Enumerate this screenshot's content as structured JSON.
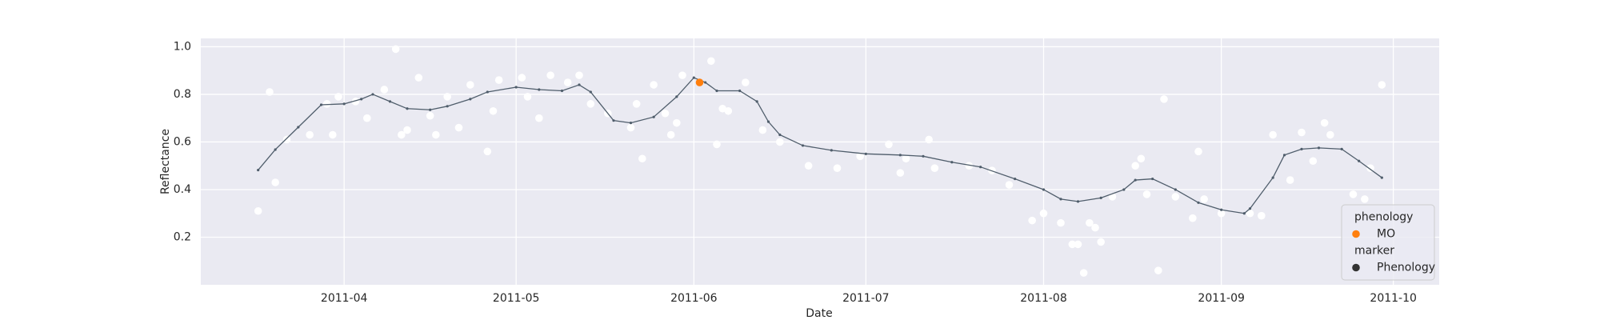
{
  "chart_data": {
    "type": "scatter",
    "x_label": "Date",
    "y_label": "Reflectance",
    "xlim": [
      "2011-03-07",
      "2011-10-09"
    ],
    "xticks": [
      {
        "value": "2011-04-01",
        "label": "2011-04"
      },
      {
        "value": "2011-05-01",
        "label": "2011-05"
      },
      {
        "value": "2011-06-01",
        "label": "2011-06"
      },
      {
        "value": "2011-07-01",
        "label": "2011-07"
      },
      {
        "value": "2011-08-01",
        "label": "2011-08"
      },
      {
        "value": "2011-09-01",
        "label": "2011-09"
      },
      {
        "value": "2011-10-01",
        "label": "2011-10"
      }
    ],
    "ylim": [
      0,
      1.035
    ],
    "yticks": [
      0.2,
      0.4,
      0.6,
      0.8,
      {
        "value": 1.0,
        "label": "1.0"
      }
    ],
    "grid": true,
    "series": [
      {
        "type": "line",
        "color": "#4f5d6b",
        "x": [
          "2011-03-17",
          "2011-03-20",
          "2011-03-24",
          "2011-03-28",
          "2011-04-01",
          "2011-04-04",
          "2011-04-06",
          "2011-04-09",
          "2011-04-12",
          "2011-04-16",
          "2011-04-19",
          "2011-04-23",
          "2011-04-26",
          "2011-05-01",
          "2011-05-05",
          "2011-05-09",
          "2011-05-12",
          "2011-05-14",
          "2011-05-18",
          "2011-05-21",
          "2011-05-25",
          "2011-05-29",
          "2011-06-01",
          "2011-06-03",
          "2011-06-05",
          "2011-06-09",
          "2011-06-12",
          "2011-06-14",
          "2011-06-16",
          "2011-06-20",
          "2011-06-25",
          "2011-07-01",
          "2011-07-07",
          "2011-07-11",
          "2011-07-16",
          "2011-07-21",
          "2011-07-27",
          "2011-08-01",
          "2011-08-04",
          "2011-08-07",
          "2011-08-11",
          "2011-08-15",
          "2011-08-17",
          "2011-08-20",
          "2011-08-24",
          "2011-08-28",
          "2011-09-01",
          "2011-09-05",
          "2011-09-06",
          "2011-09-10",
          "2011-09-12",
          "2011-09-15",
          "2011-09-18",
          "2011-09-22",
          "2011-09-25",
          "2011-09-29"
        ],
        "values": [
          0.482,
          0.568,
          0.662,
          0.756,
          0.76,
          0.78,
          0.8,
          0.77,
          0.74,
          0.735,
          0.75,
          0.78,
          0.81,
          0.83,
          0.82,
          0.815,
          0.84,
          0.81,
          0.69,
          0.68,
          0.705,
          0.79,
          0.87,
          0.85,
          0.815,
          0.815,
          0.77,
          0.685,
          0.63,
          0.585,
          0.565,
          0.55,
          0.545,
          0.54,
          0.515,
          0.495,
          0.445,
          0.4,
          0.36,
          0.35,
          0.365,
          0.4,
          0.44,
          0.445,
          0.4,
          0.345,
          0.315,
          0.3,
          0.32,
          0.45,
          0.545,
          0.57,
          0.575,
          0.57,
          0.52,
          0.45
        ]
      },
      {
        "type": "scatter",
        "color": "#ffffff",
        "x": [
          "2011-03-17",
          "2011-03-19",
          "2011-03-20",
          "2011-03-22",
          "2011-03-26",
          "2011-03-30",
          "2011-03-29",
          "2011-03-31",
          "2011-04-03",
          "2011-04-05",
          "2011-04-08",
          "2011-04-10",
          "2011-04-11",
          "2011-04-12",
          "2011-04-14",
          "2011-04-16",
          "2011-04-17",
          "2011-04-19",
          "2011-04-21",
          "2011-04-23",
          "2011-04-26",
          "2011-04-27",
          "2011-04-28",
          "2011-05-02",
          "2011-05-03",
          "2011-05-05",
          "2011-05-07",
          "2011-05-10",
          "2011-05-12",
          "2011-05-14",
          "2011-05-17",
          "2011-05-21",
          "2011-05-22",
          "2011-05-23",
          "2011-05-25",
          "2011-05-27",
          "2011-05-28",
          "2011-05-29",
          "2011-05-30",
          "2011-06-04",
          "2011-06-05",
          "2011-06-06",
          "2011-06-07",
          "2011-06-10",
          "2011-06-13",
          "2011-06-16",
          "2011-06-21",
          "2011-06-26",
          "2011-06-30",
          "2011-07-05",
          "2011-07-07",
          "2011-07-08",
          "2011-07-12",
          "2011-07-13",
          "2011-07-19",
          "2011-07-23",
          "2011-07-26",
          "2011-07-30",
          "2011-08-01",
          "2011-08-04",
          "2011-08-06",
          "2011-08-07",
          "2011-08-08",
          "2011-08-09",
          "2011-08-10",
          "2011-08-11",
          "2011-08-13",
          "2011-08-17",
          "2011-08-18",
          "2011-08-19",
          "2011-08-21",
          "2011-08-22",
          "2011-08-24",
          "2011-08-27",
          "2011-08-28",
          "2011-08-29",
          "2011-09-01",
          "2011-09-06",
          "2011-09-08",
          "2011-09-10",
          "2011-09-13",
          "2011-09-15",
          "2011-09-17",
          "2011-09-19",
          "2011-09-20",
          "2011-09-24",
          "2011-09-26",
          "2011-09-27",
          "2011-09-29"
        ],
        "values": [
          0.31,
          0.81,
          0.43,
          0.61,
          0.63,
          0.63,
          0.76,
          0.79,
          0.77,
          0.7,
          0.82,
          0.99,
          0.63,
          0.65,
          0.87,
          0.71,
          0.63,
          0.79,
          0.66,
          0.84,
          0.56,
          0.73,
          0.86,
          0.87,
          0.79,
          0.7,
          0.88,
          0.85,
          0.88,
          0.76,
          0.72,
          0.66,
          0.76,
          0.53,
          0.84,
          0.72,
          0.63,
          0.68,
          0.88,
          0.94,
          0.59,
          0.74,
          0.73,
          0.85,
          0.65,
          0.6,
          0.5,
          0.49,
          0.54,
          0.59,
          0.47,
          0.53,
          0.61,
          0.49,
          0.5,
          0.48,
          0.42,
          0.27,
          0.3,
          0.26,
          0.17,
          0.17,
          0.05,
          0.26,
          0.24,
          0.18,
          0.37,
          0.5,
          0.53,
          0.38,
          0.06,
          0.78,
          0.37,
          0.28,
          0.56,
          0.36,
          0.3,
          0.3,
          0.29,
          0.63,
          0.44,
          0.64,
          0.52,
          0.68,
          0.63,
          0.38,
          0.36,
          0.49,
          0.84
        ]
      },
      {
        "type": "scatter",
        "color": "#ff7f0e",
        "x": [
          "2011-06-02"
        ],
        "values": [
          0.85
        ]
      }
    ],
    "legend": {
      "loc": "lower right",
      "groups": [
        {
          "title": "phenology",
          "entries": [
            {
              "label": "MO",
              "color": "#ff7f0e"
            }
          ]
        },
        {
          "title": "marker",
          "entries": [
            {
              "label": "Phenology",
              "color": "#333333"
            }
          ]
        }
      ]
    }
  }
}
